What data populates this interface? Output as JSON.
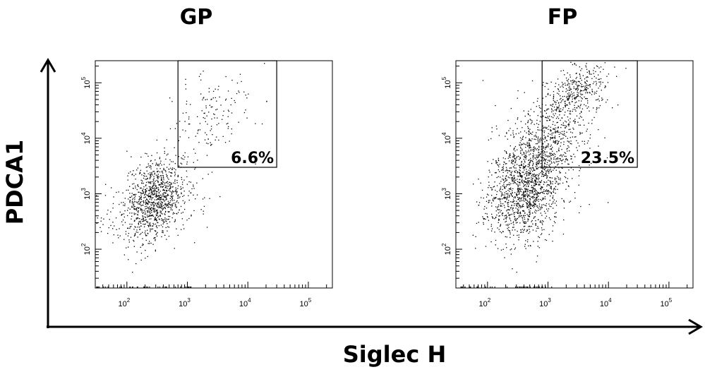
{
  "figure": {
    "x_axis_label": "Siglec H",
    "y_axis_label": "PDCA1"
  },
  "chart_data": [
    {
      "type": "scatter",
      "title": "GP",
      "xlabel": "Siglec H",
      "ylabel": "PDCA1",
      "xscale": "log",
      "yscale": "log",
      "xlim": [
        30,
        250000
      ],
      "ylim": [
        20,
        250000
      ],
      "x_ticks": [
        {
          "value": 100,
          "label": "10^2"
        },
        {
          "value": 1000,
          "label": "10^3"
        },
        {
          "value": 10000,
          "label": "10^4"
        },
        {
          "value": 100000,
          "label": "10^5"
        }
      ],
      "y_ticks": [
        {
          "value": 100,
          "label": "10^2"
        },
        {
          "value": 1000,
          "label": "10^3"
        },
        {
          "value": 10000,
          "label": "10^4"
        },
        {
          "value": 100000,
          "label": "10^5"
        }
      ],
      "gate": {
        "x_range": [
          700,
          30000
        ],
        "y_range": [
          3000,
          250000
        ],
        "percent_label": "6.6%"
      },
      "populations": [
        {
          "n": 900,
          "center": [
            300,
            800
          ],
          "spread_log10": [
            0.25,
            0.35
          ]
        },
        {
          "n": 200,
          "center": [
            200,
            600
          ],
          "spread_log10": [
            0.45,
            0.45
          ]
        },
        {
          "n": 150,
          "center": [
            2500,
            25000
          ],
          "spread_log10": [
            0.4,
            0.4
          ]
        }
      ],
      "seed": 7
    },
    {
      "type": "scatter",
      "title": "FP",
      "xlabel": "Siglec H",
      "ylabel": "PDCA1",
      "xscale": "log",
      "yscale": "log",
      "xlim": [
        30,
        250000
      ],
      "ylim": [
        20,
        250000
      ],
      "x_ticks": [
        {
          "value": 100,
          "label": "10^2"
        },
        {
          "value": 1000,
          "label": "10^3"
        },
        {
          "value": 10000,
          "label": "10^4"
        },
        {
          "value": 100000,
          "label": "10^5"
        }
      ],
      "y_ticks": [
        {
          "value": 100,
          "label": "10^2"
        },
        {
          "value": 1000,
          "label": "10^3"
        },
        {
          "value": 10000,
          "label": "10^4"
        },
        {
          "value": 100000,
          "label": "10^5"
        }
      ],
      "gate": {
        "x_range": [
          800,
          30000
        ],
        "y_range": [
          3000,
          250000
        ],
        "percent_label": "23.5%"
      },
      "populations": [
        {
          "n": 1300,
          "center": [
            400,
            1200
          ],
          "spread_log10": [
            0.3,
            0.45
          ]
        },
        {
          "n": 600,
          "center": [
            1000,
            8000
          ],
          "spread_log10": [
            0.35,
            0.45
          ]
        },
        {
          "n": 350,
          "center": [
            3000,
            70000
          ],
          "spread_log10": [
            0.25,
            0.25
          ]
        }
      ],
      "seed": 11
    }
  ]
}
